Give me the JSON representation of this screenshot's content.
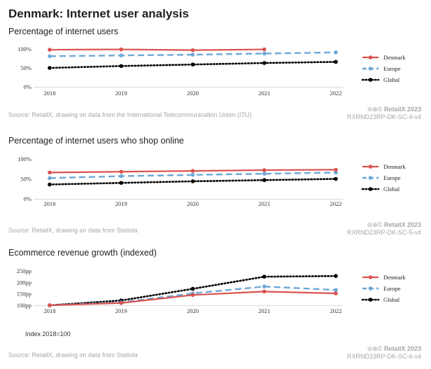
{
  "page_title": "Denmark: Internet user analysis",
  "chart_data": [
    {
      "type": "line",
      "title": "Percentage of internet users",
      "categories": [
        "2018",
        "2019",
        "2020",
        "2021",
        "2022"
      ],
      "y_ticks": [
        "0%",
        "50%",
        "100%"
      ],
      "ylim": [
        0,
        100
      ],
      "series": [
        {
          "name": "Denmark",
          "values": [
            98,
            99,
            97,
            99,
            null
          ],
          "color": "#d9534f",
          "style": "solid"
        },
        {
          "name": "Europe",
          "values": [
            81,
            83,
            85,
            88,
            91
          ],
          "color": "#6ea8d8",
          "style": "dashed"
        },
        {
          "name": "Global",
          "values": [
            50,
            55,
            59,
            63,
            66
          ],
          "color": "#000000",
          "style": "dotted"
        }
      ],
      "source": "Source: RetailX, drawing on data from the International Telecommunication Union (ITU)",
      "brand": "RetailX 2023",
      "code": "RXRND23RP-DK-SC-4-v4"
    },
    {
      "type": "line",
      "title": "Percentage of internet users who shop online",
      "categories": [
        "2018",
        "2019",
        "2020",
        "2021",
        "2022"
      ],
      "y_ticks": [
        "0%",
        "50%",
        "100%"
      ],
      "ylim": [
        0,
        100
      ],
      "series": [
        {
          "name": "Denmark",
          "values": [
            66,
            68,
            70,
            72,
            73
          ],
          "color": "#d9534f",
          "style": "solid"
        },
        {
          "name": "Europe",
          "values": [
            52,
            57,
            60,
            63,
            66
          ],
          "color": "#6ea8d8",
          "style": "dashed"
        },
        {
          "name": "Global",
          "values": [
            36,
            40,
            44,
            47,
            50
          ],
          "color": "#000000",
          "style": "dotted"
        }
      ],
      "source": "Source: RetailX, drawing on data from Statista",
      "brand": "RetailX 2023",
      "code": "RXRND23RP-DK-SC-5-v4"
    },
    {
      "type": "line",
      "title": "Ecommerce revenue growth (indexed)",
      "categories": [
        "2018",
        "2019",
        "2020",
        "2021",
        "2022"
      ],
      "y_ticks": [
        "100pp",
        "150pp",
        "200pp",
        "250pp"
      ],
      "ylim": [
        100,
        250
      ],
      "series": [
        {
          "name": "Denmark",
          "values": [
            100,
            110,
            145,
            160,
            152
          ],
          "color": "#d9534f",
          "style": "solid"
        },
        {
          "name": "Europe",
          "values": [
            100,
            113,
            152,
            182,
            167
          ],
          "color": "#6ea8d8",
          "style": "dashed"
        },
        {
          "name": "Global",
          "values": [
            100,
            121,
            172,
            225,
            228
          ],
          "color": "#000000",
          "style": "dotted"
        }
      ],
      "note": "Index 2018=100",
      "source": "Source: RetailX, drawing on data from Statista",
      "brand": "RetailX 2023",
      "code": "RXRND23RP-DK-SC-6-v4"
    }
  ]
}
